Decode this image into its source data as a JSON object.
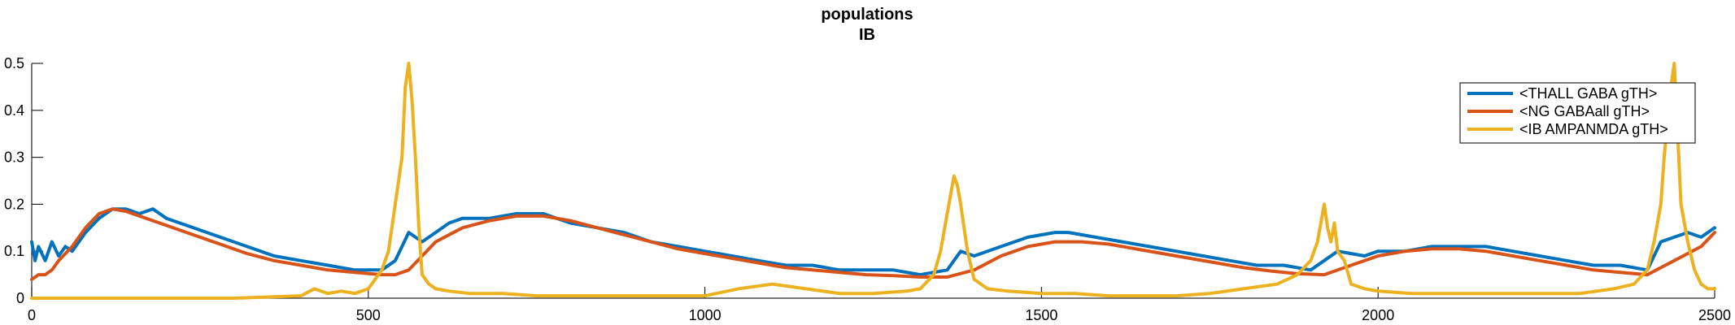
{
  "chart_data": {
    "type": "line",
    "title": "populations",
    "subtitle": "IB",
    "xlabel": "",
    "ylabel": "",
    "xlim": [
      0,
      2500
    ],
    "ylim": [
      0,
      0.5
    ],
    "xticks": [
      0,
      500,
      1000,
      1500,
      2000,
      2500
    ],
    "xtick_labels": [
      "0",
      "500",
      "1000",
      "1500",
      "2000",
      "2500"
    ],
    "yticks": [
      0,
      0.1,
      0.2,
      0.3,
      0.4,
      0.5
    ],
    "ytick_labels": [
      "0",
      "0.1",
      "0.2",
      "0.3",
      "0.4",
      "0.5"
    ],
    "grid": false,
    "legend_position": "top-right",
    "series": [
      {
        "name": "<THALL GABA gTH>",
        "color": "#0072BD",
        "x": [
          0,
          5,
          10,
          20,
          30,
          40,
          50,
          60,
          80,
          100,
          120,
          140,
          160,
          180,
          200,
          240,
          280,
          320,
          360,
          400,
          440,
          480,
          520,
          540,
          560,
          580,
          600,
          620,
          640,
          680,
          720,
          760,
          800,
          840,
          880,
          920,
          960,
          1000,
          1040,
          1080,
          1120,
          1160,
          1200,
          1240,
          1280,
          1320,
          1360,
          1380,
          1400,
          1440,
          1480,
          1520,
          1540,
          1580,
          1620,
          1660,
          1700,
          1740,
          1780,
          1820,
          1860,
          1900,
          1940,
          1980,
          2000,
          2040,
          2080,
          2120,
          2160,
          2200,
          2240,
          2280,
          2320,
          2360,
          2400,
          2420,
          2440,
          2460,
          2480,
          2500
        ],
        "y": [
          0.12,
          0.08,
          0.11,
          0.08,
          0.12,
          0.09,
          0.11,
          0.1,
          0.14,
          0.17,
          0.19,
          0.19,
          0.18,
          0.19,
          0.17,
          0.15,
          0.13,
          0.11,
          0.09,
          0.08,
          0.07,
          0.06,
          0.06,
          0.08,
          0.14,
          0.12,
          0.14,
          0.16,
          0.17,
          0.17,
          0.18,
          0.18,
          0.16,
          0.15,
          0.14,
          0.12,
          0.11,
          0.1,
          0.09,
          0.08,
          0.07,
          0.07,
          0.06,
          0.06,
          0.06,
          0.05,
          0.06,
          0.1,
          0.09,
          0.11,
          0.13,
          0.14,
          0.14,
          0.13,
          0.12,
          0.11,
          0.1,
          0.09,
          0.08,
          0.07,
          0.07,
          0.06,
          0.1,
          0.09,
          0.1,
          0.1,
          0.11,
          0.11,
          0.11,
          0.1,
          0.09,
          0.08,
          0.07,
          0.07,
          0.06,
          0.12,
          0.13,
          0.14,
          0.13,
          0.15
        ]
      },
      {
        "name": "<NG GABAall gTH>",
        "color": "#D95319",
        "x": [
          0,
          10,
          20,
          30,
          40,
          60,
          80,
          100,
          120,
          140,
          160,
          200,
          240,
          280,
          320,
          360,
          400,
          440,
          480,
          520,
          540,
          560,
          580,
          600,
          640,
          680,
          720,
          760,
          800,
          840,
          880,
          920,
          960,
          1000,
          1040,
          1080,
          1120,
          1160,
          1200,
          1240,
          1280,
          1320,
          1360,
          1400,
          1440,
          1480,
          1520,
          1560,
          1600,
          1640,
          1680,
          1720,
          1760,
          1800,
          1840,
          1880,
          1920,
          1960,
          2000,
          2040,
          2080,
          2120,
          2160,
          2200,
          2240,
          2280,
          2320,
          2360,
          2400,
          2440,
          2480,
          2500
        ],
        "y": [
          0.04,
          0.05,
          0.05,
          0.06,
          0.08,
          0.11,
          0.15,
          0.18,
          0.19,
          0.185,
          0.175,
          0.155,
          0.135,
          0.115,
          0.095,
          0.08,
          0.07,
          0.06,
          0.055,
          0.05,
          0.05,
          0.06,
          0.09,
          0.12,
          0.15,
          0.165,
          0.175,
          0.175,
          0.165,
          0.15,
          0.135,
          0.12,
          0.105,
          0.095,
          0.085,
          0.075,
          0.065,
          0.06,
          0.055,
          0.05,
          0.048,
          0.045,
          0.045,
          0.06,
          0.09,
          0.11,
          0.12,
          0.12,
          0.115,
          0.105,
          0.095,
          0.085,
          0.075,
          0.065,
          0.058,
          0.052,
          0.05,
          0.07,
          0.09,
          0.1,
          0.105,
          0.105,
          0.1,
          0.09,
          0.08,
          0.07,
          0.06,
          0.055,
          0.05,
          0.08,
          0.11,
          0.14
        ]
      },
      {
        "name": "<IB AMPANMDA gTH>",
        "color": "#EDB120",
        "x": [
          0,
          100,
          200,
          300,
          400,
          420,
          440,
          460,
          480,
          500,
          510,
          520,
          530,
          540,
          550,
          555,
          560,
          565,
          570,
          575,
          580,
          590,
          600,
          620,
          650,
          700,
          750,
          800,
          850,
          900,
          950,
          1000,
          1050,
          1100,
          1150,
          1200,
          1250,
          1300,
          1320,
          1340,
          1350,
          1360,
          1370,
          1375,
          1380,
          1385,
          1390,
          1400,
          1420,
          1450,
          1500,
          1550,
          1600,
          1650,
          1700,
          1750,
          1800,
          1850,
          1880,
          1900,
          1910,
          1920,
          1925,
          1930,
          1935,
          1940,
          1950,
          1960,
          1980,
          2000,
          2050,
          2100,
          2150,
          2200,
          2250,
          2300,
          2350,
          2380,
          2400,
          2410,
          2420,
          2425,
          2430,
          2435,
          2440,
          2445,
          2450,
          2460,
          2470,
          2480,
          2490,
          2500
        ],
        "y": [
          0,
          0,
          0,
          0,
          0.005,
          0.02,
          0.01,
          0.015,
          0.01,
          0.02,
          0.04,
          0.06,
          0.1,
          0.2,
          0.3,
          0.45,
          0.5,
          0.42,
          0.3,
          0.15,
          0.05,
          0.03,
          0.02,
          0.015,
          0.01,
          0.01,
          0.005,
          0.005,
          0.005,
          0.005,
          0.005,
          0.005,
          0.02,
          0.03,
          0.02,
          0.01,
          0.01,
          0.015,
          0.02,
          0.05,
          0.1,
          0.18,
          0.26,
          0.24,
          0.2,
          0.15,
          0.1,
          0.04,
          0.02,
          0.015,
          0.01,
          0.01,
          0.005,
          0.005,
          0.005,
          0.01,
          0.02,
          0.03,
          0.05,
          0.08,
          0.12,
          0.2,
          0.15,
          0.12,
          0.16,
          0.1,
          0.08,
          0.03,
          0.02,
          0.015,
          0.01,
          0.01,
          0.01,
          0.01,
          0.01,
          0.01,
          0.02,
          0.03,
          0.06,
          0.12,
          0.2,
          0.3,
          0.38,
          0.45,
          0.5,
          0.35,
          0.2,
          0.12,
          0.06,
          0.03,
          0.02,
          0.02
        ]
      }
    ]
  }
}
